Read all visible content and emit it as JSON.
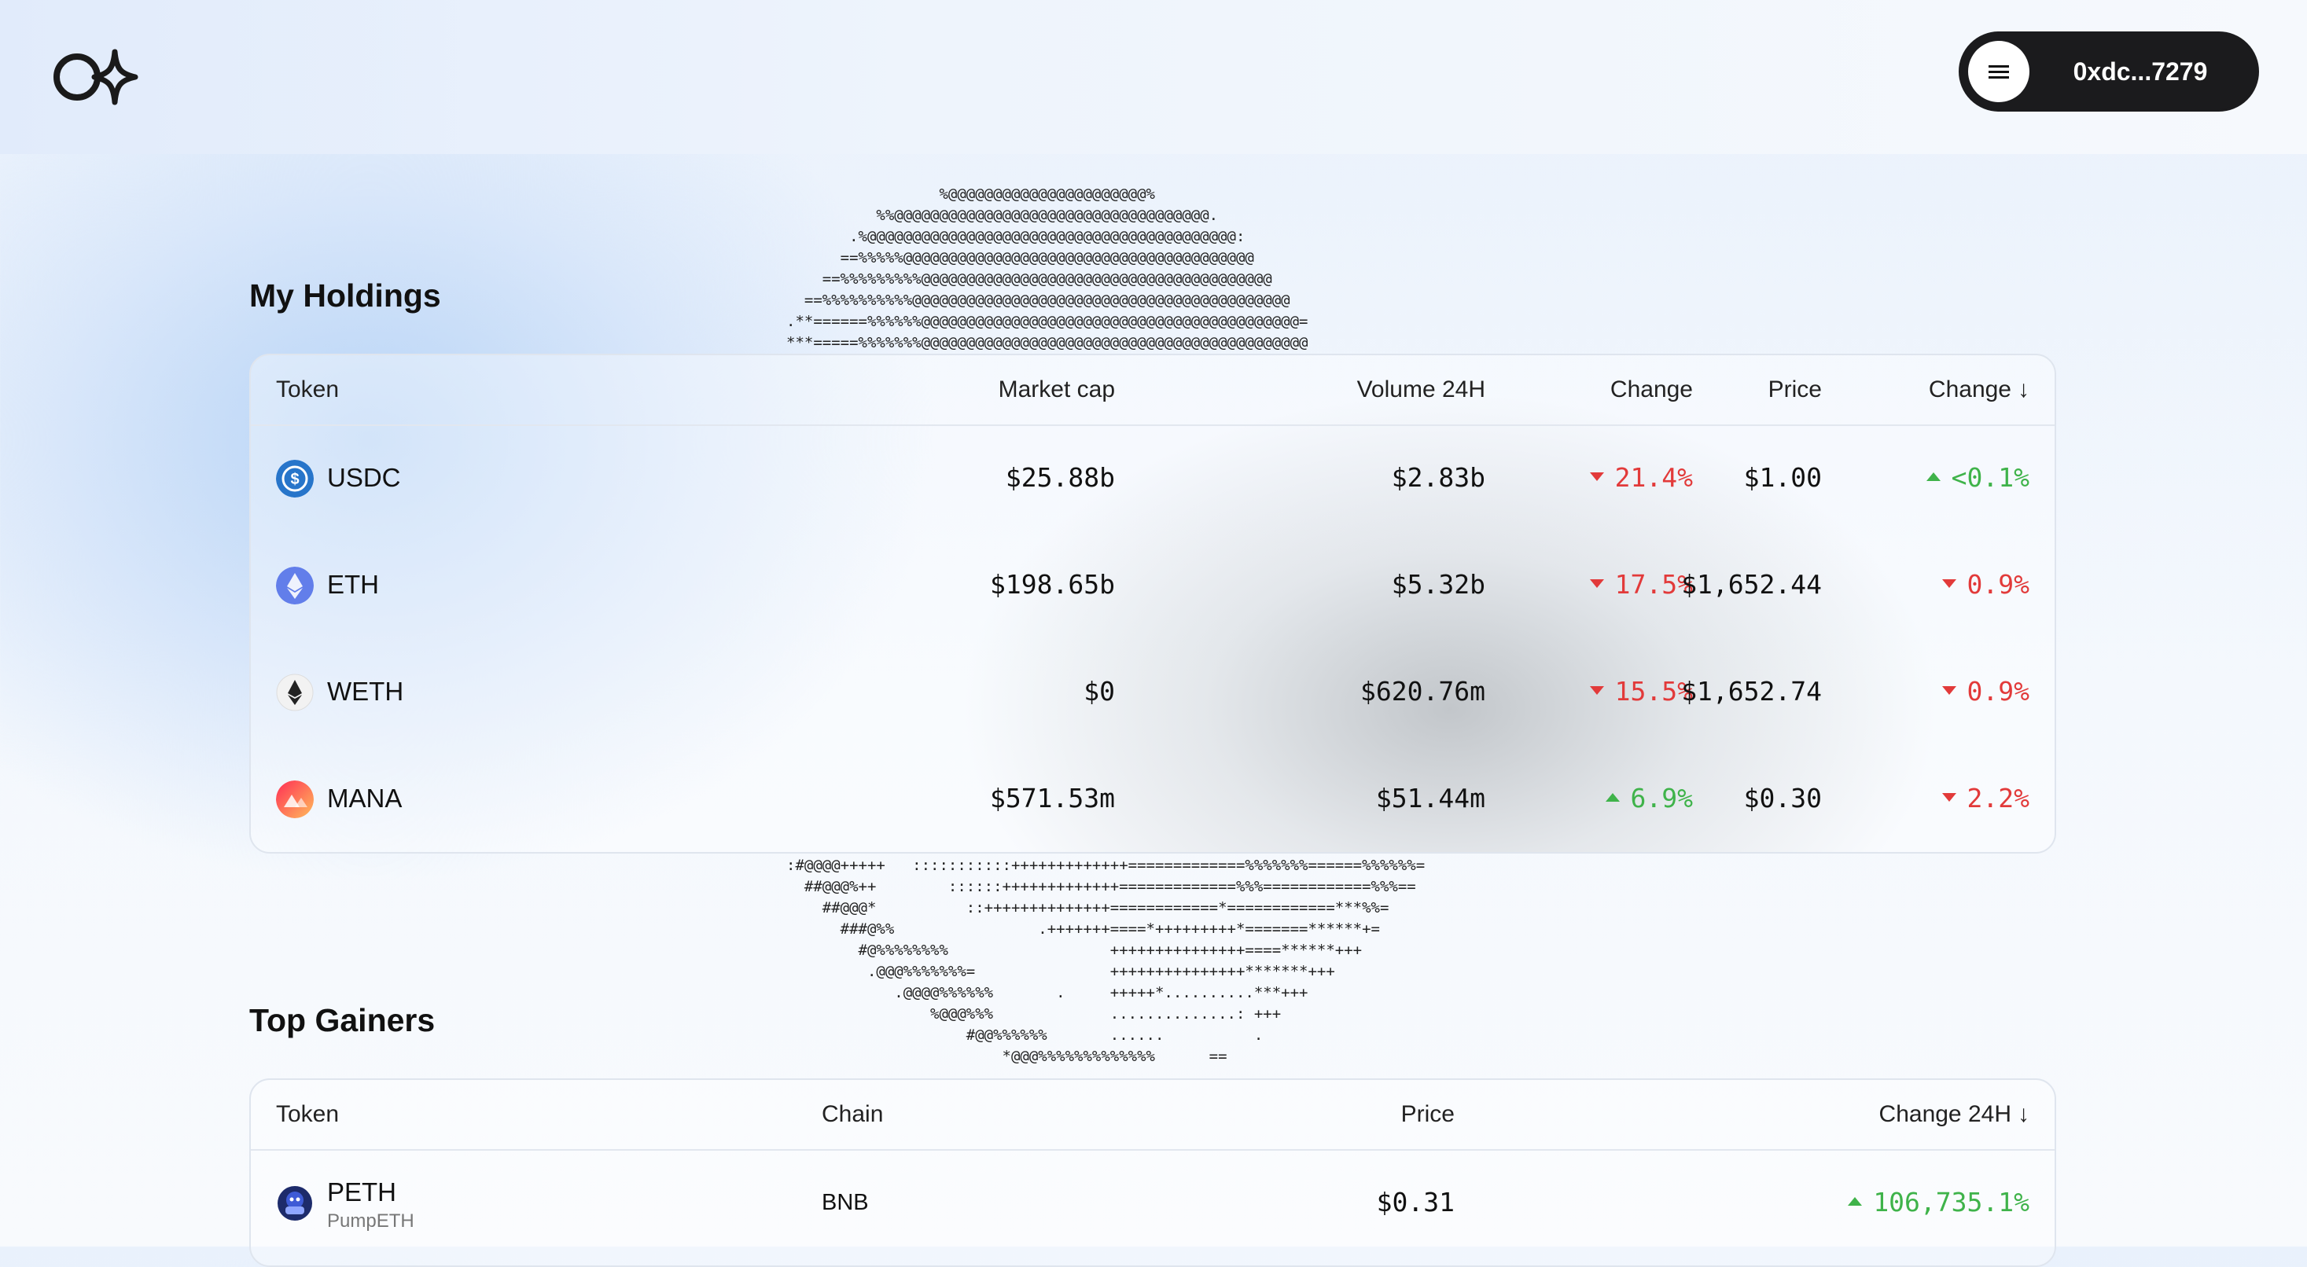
{
  "header": {
    "logo": "logo-icon",
    "wallet": {
      "menu_icon": "menu-icon",
      "address": "0xdc...7279"
    }
  },
  "ascii_art": {
    "top": "%@@@@@@@@@@@@@@@@@@@@@@%\n%%@@@@@@@@@@@@@@@@@@@@@@@@@@@@@@@@@@@.\n.%@@@@@@@@@@@@@@@@@@@@@@@@@@@@@@@@@@@@@@@@@:\n==%%%%%@@@@@@@@@@@@@@@@@@@@@@@@@@@@@@@@@@@@@@@\n==%%%%%%%%%@@@@@@@@@@@@@@@@@@@@@@@@@@@@@@@@@@@@@@@\n==%%%%%%%%%%@@@@@@@@@@@@@@@@@@@@@@@@@@@@@@@@@@@@@@@@@@\n.**======%%%%%%@@@@@@@@@@@@@@@@@@@@@@@@@@@@@@@@@@@@@@@@@@=\n***=====%%%%%%%@@@@@@@@@@@@@@@@@@@@@@@@@@@@@@@@@@@@@@@@@@@",
    "bottom": ":#@@@@+++++   :::::::::::+++++++++++++=============%%%%%%%======%%%%%%=\n  ##@@@%++        ::::::+++++++++++++=============%%%============%%%==\n    ##@@@*          ::++++++++++++++============*============***%%=\n      ###@%%                .+++++++====*+++++++++*=======******+=\n        #@%%%%%%%%                  +++++++++++++++====******+++\n         .@@@%%%%%%%=               +++++++++++++++*******+++\n            .@@@@%%%%%%       .     +++++*..........***+++\n                %@@@%%%             ..............: +++\n                    #@@%%%%%%       ......          .\n                        *@@@%%%%%%%%%%%%%      =="
  },
  "holdings": {
    "title": "My Holdings",
    "columns": [
      "Token",
      "Market cap",
      "Volume 24H",
      "Change",
      "Price",
      "Change"
    ],
    "sort_icon": "arrow-down-icon",
    "rows": [
      {
        "token": "USDC",
        "icon": "usdc-icon",
        "color": "#2775ca",
        "market_cap": "$25.88b",
        "volume": "$2.83b",
        "change": "21.4%",
        "change_dir": "down",
        "price": "$1.00",
        "change2": "<0.1%",
        "change2_dir": "up"
      },
      {
        "token": "ETH",
        "icon": "eth-icon",
        "color": "#627eea",
        "market_cap": "$198.65b",
        "volume": "$5.32b",
        "change": "17.5%",
        "change_dir": "down",
        "price": "$1,652.44",
        "change2": "0.9%",
        "change2_dir": "down"
      },
      {
        "token": "WETH",
        "icon": "weth-icon",
        "color": "#f2f2f2",
        "market_cap": "$0",
        "volume": "$620.76m",
        "change": "15.5%",
        "change_dir": "down",
        "price": "$1,652.74",
        "change2": "0.9%",
        "change2_dir": "down"
      },
      {
        "token": "MANA",
        "icon": "mana-icon",
        "color": "#ff5d5d",
        "market_cap": "$571.53m",
        "volume": "$51.44m",
        "change": "6.9%",
        "change_dir": "up",
        "price": "$0.30",
        "change2": "2.2%",
        "change2_dir": "down"
      }
    ]
  },
  "gainers": {
    "title": "Top Gainers",
    "columns": [
      "Token",
      "Chain",
      "Price",
      "Change 24H"
    ],
    "sort_icon": "arrow-down-icon",
    "rows": [
      {
        "token": "PETH",
        "subtitle": "PumpETH",
        "icon": "peth-icon",
        "chain": "BNB",
        "price": "$0.31",
        "change": "106,735.1%",
        "change_dir": "up"
      }
    ]
  },
  "colors": {
    "negative": "#e23a3a",
    "positive": "#3fb34a",
    "wallet_bg": "#1b1b1d"
  }
}
